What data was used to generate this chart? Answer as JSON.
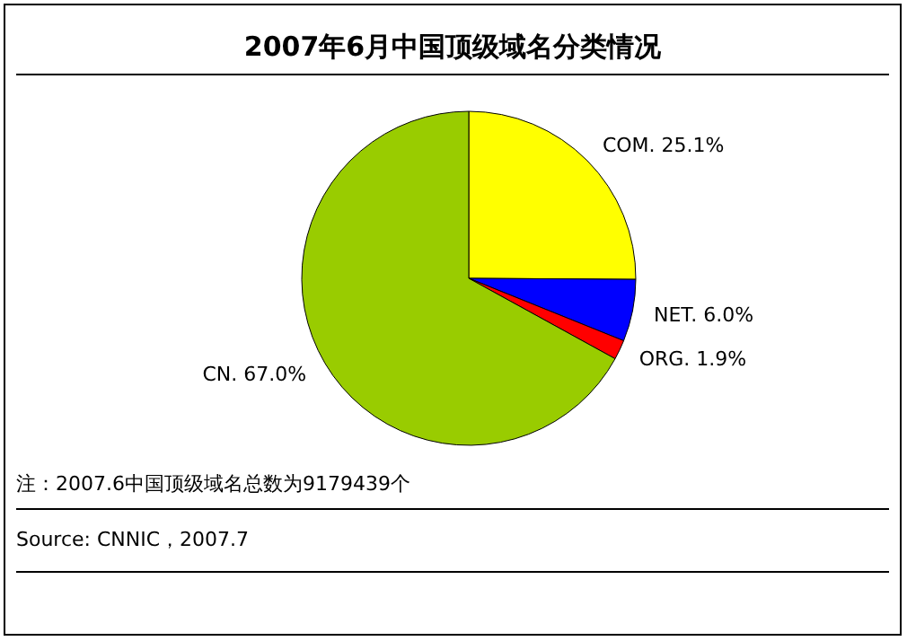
{
  "chart_data": {
    "type": "pie",
    "title": "2007年6月中国顶级域名分类情况",
    "categories": [
      "COM.",
      "NET.",
      "ORG.",
      "CN."
    ],
    "values": [
      25.1,
      6.0,
      1.9,
      67.0
    ],
    "value_labels": [
      "25.1%",
      "6.0%",
      "1.9%",
      "67.0%"
    ],
    "colors": [
      "#ffff00",
      "#0000ff",
      "#ff0000",
      "#99cc00"
    ],
    "legend": false,
    "annotations": [
      "注：2007.6中国顶级域名总数为9179439个",
      "Source: CNNIC，2007.7"
    ]
  }
}
